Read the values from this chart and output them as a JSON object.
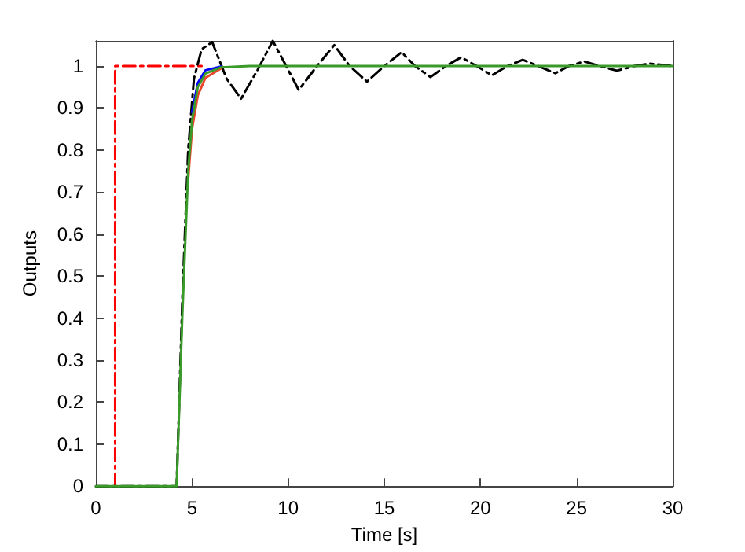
{
  "chart_data": {
    "type": "line",
    "xlabel": "Time [s]",
    "ylabel": "Outputs",
    "xlim": [
      0,
      30
    ],
    "xticks": [
      0,
      5,
      10,
      15,
      20,
      25,
      30
    ],
    "ylim": [
      0,
      1.06
    ],
    "yticks": [
      0,
      0.1,
      0.2,
      0.3,
      0.4,
      0.5,
      0.6,
      0.7,
      0.8,
      0.9,
      1
    ],
    "grid": false,
    "marker": "none",
    "series": [
      {
        "color": "#ff0000",
        "line_style": "dashed",
        "x": [
          1,
          1,
          5.5
        ],
        "values": [
          0,
          1,
          1
        ]
      },
      {
        "color": "#000000",
        "line_style": "dashed",
        "x": [
          0,
          4.2,
          4.5,
          4.8,
          5.1,
          5.5,
          6.05,
          6.8,
          7.55,
          8.4,
          9.2,
          9.9,
          10.55,
          11.5,
          12.4,
          13.2,
          14.1,
          15,
          15.9,
          16.6,
          17.4,
          18.2,
          19,
          19.8,
          20.6,
          21.4,
          22.2,
          23,
          23.9,
          24.6,
          25.4,
          26.2,
          27.1,
          28,
          28.8,
          30
        ],
        "values": [
          0,
          0,
          0.45,
          0.8,
          0.97,
          1.04,
          1.057,
          0.97,
          0.922,
          0.99,
          1.06,
          1,
          0.943,
          1,
          1.05,
          1,
          0.963,
          1,
          1.033,
          1,
          0.974,
          1,
          1.021,
          1,
          0.978,
          1,
          1.015,
          1,
          0.983,
          1,
          1.011,
          1,
          0.989,
          1,
          1.006,
          1
        ]
      },
      {
        "color": "#0000ff",
        "line_style": "solid",
        "x": [
          5.0,
          5.3,
          5.7,
          6.5
        ],
        "values": [
          0.89,
          0.96,
          0.99,
          0.999
        ]
      },
      {
        "color": "#e8452c",
        "line_style": "solid",
        "x": [
          4.8,
          5.0,
          5.3,
          5.7,
          6.5
        ],
        "values": [
          0.73,
          0.85,
          0.93,
          0.972,
          0.994
        ]
      },
      {
        "color": "#3a9a2a",
        "line_style": "solid",
        "x": [
          0,
          4.2,
          4.5,
          4.8,
          5.0,
          5.3,
          5.7,
          6.5,
          8,
          30
        ],
        "values": [
          0,
          0,
          0.41,
          0.75,
          0.87,
          0.95,
          0.982,
          0.997,
          1,
          1
        ]
      }
    ]
  }
}
